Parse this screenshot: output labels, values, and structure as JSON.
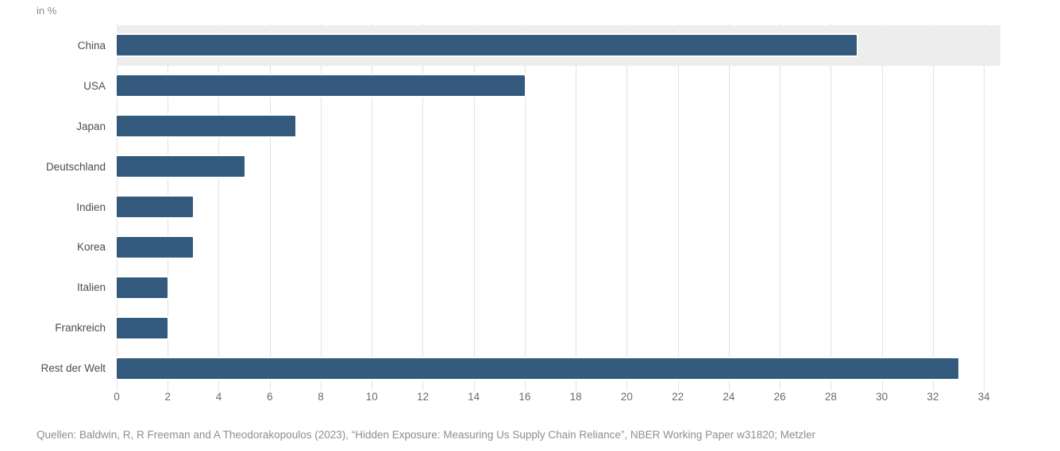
{
  "chart_data": {
    "type": "bar",
    "orientation": "horizontal",
    "title": "",
    "unit_label": "in %",
    "categories": [
      "China",
      "USA",
      "Japan",
      "Deutschland",
      "Indien",
      "Korea",
      "Italien",
      "Frankreich",
      "Rest der Welt"
    ],
    "values": [
      29,
      16,
      7,
      5,
      3,
      3,
      2,
      2,
      33
    ],
    "highlighted_category": "China",
    "xlabel": "",
    "ylabel": "",
    "xlim": [
      0,
      34.65
    ],
    "xticks": [
      0,
      2,
      4,
      6,
      8,
      10,
      12,
      14,
      16,
      18,
      20,
      22,
      24,
      26,
      28,
      30,
      32,
      34
    ],
    "grid": true,
    "legend": false,
    "colors": {
      "bar": "#33597d",
      "highlight_band": "#ededed",
      "gridline": "#e2e2e2",
      "category_text": "#4d4d4d",
      "tick_text": "#6b6b6b",
      "muted_text": "#8e8e8e"
    },
    "source": "Quellen: Baldwin, R, R Freeman and A Theodorakopoulos (2023), “Hidden Exposure: Measuring Us Supply Chain Reliance”, NBER Working Paper w31820; Metzler"
  }
}
